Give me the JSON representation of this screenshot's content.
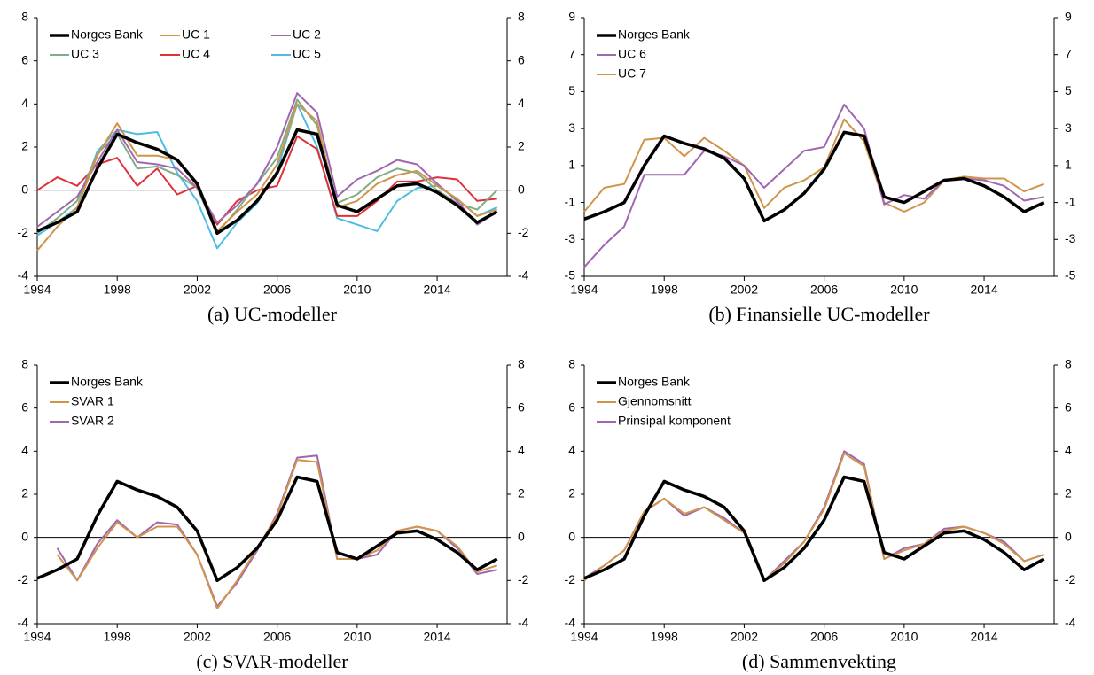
{
  "chart_data": [
    {
      "type": "line",
      "title": "(a) UC-modeller",
      "x": [
        1994,
        1995,
        1996,
        1997,
        1998,
        1999,
        2000,
        2001,
        2002,
        2003,
        2004,
        2005,
        2006,
        2007,
        2008,
        2009,
        2010,
        2011,
        2012,
        2013,
        2014,
        2015,
        2016,
        2017
      ],
      "series": [
        {
          "name": "Norges Bank",
          "color": "#000000",
          "values": [
            -1.9,
            -1.5,
            -1.0,
            1.0,
            2.6,
            2.2,
            1.9,
            1.4,
            0.3,
            -2.0,
            -1.4,
            -0.5,
            0.8,
            2.8,
            2.6,
            -0.7,
            -1.0,
            -0.4,
            0.2,
            0.3,
            -0.1,
            -0.7,
            -1.5,
            -1.0
          ]
        },
        {
          "name": "UC 1",
          "color": "#d0944a",
          "values": [
            -2.8,
            -1.7,
            -0.8,
            1.6,
            3.1,
            1.6,
            1.6,
            1.4,
            0.2,
            -1.9,
            -1.0,
            -0.2,
            1.2,
            4.0,
            3.2,
            -0.8,
            -0.5,
            0.3,
            0.7,
            0.9,
            0.2,
            -0.4,
            -1.2,
            -0.9
          ]
        },
        {
          "name": "UC 2",
          "color": "#a066b0",
          "values": [
            -1.7,
            -1.0,
            -0.3,
            1.3,
            2.8,
            1.3,
            1.2,
            1.0,
            0.1,
            -1.5,
            -0.7,
            0.3,
            2.0,
            4.5,
            3.6,
            -0.3,
            0.5,
            0.9,
            1.4,
            1.2,
            0.3,
            -0.5,
            -1.6,
            -1.0
          ]
        },
        {
          "name": "UC 3",
          "color": "#7fae84",
          "values": [
            -2.0,
            -1.3,
            -0.5,
            1.7,
            2.6,
            1.0,
            1.1,
            0.7,
            0.1,
            -2.0,
            -0.9,
            0.3,
            1.5,
            4.2,
            3.0,
            -0.6,
            -0.2,
            0.6,
            1.0,
            0.8,
            0.0,
            -0.6,
            -0.9,
            0.0
          ]
        },
        {
          "name": "UC 4",
          "color": "#e0303a",
          "values": [
            0.0,
            0.6,
            0.2,
            1.2,
            1.5,
            0.2,
            1.0,
            -0.2,
            0.2,
            -1.6,
            -0.5,
            0.0,
            0.2,
            2.5,
            1.9,
            -1.2,
            -1.2,
            -0.5,
            0.4,
            0.4,
            0.6,
            0.5,
            -0.5,
            -0.4
          ]
        },
        {
          "name": "UC 5",
          "color": "#4ebde0",
          "values": [
            -2.1,
            -1.5,
            -0.8,
            1.8,
            2.8,
            2.6,
            2.7,
            0.8,
            -0.5,
            -2.7,
            -1.5,
            -0.6,
            0.9,
            4.0,
            2.0,
            -1.3,
            -1.6,
            -1.9,
            -0.5,
            0.1,
            0.2,
            -0.4,
            -1.2,
            -0.8
          ]
        }
      ],
      "xlim": [
        1994,
        2017.5
      ],
      "xticks": [
        1994,
        1998,
        2002,
        2006,
        2010,
        2014
      ],
      "ylim": [
        -4,
        8
      ],
      "yticks": [
        -4,
        -2,
        0,
        2,
        4,
        6,
        8
      ],
      "y2lim": [
        -4,
        8
      ],
      "y2ticks": [
        -4,
        -2,
        0,
        2,
        4,
        6,
        8
      ]
    },
    {
      "type": "line",
      "title": "(b) Finansielle UC-modeller",
      "x": [
        1994,
        1995,
        1996,
        1997,
        1998,
        1999,
        2000,
        2001,
        2002,
        2003,
        2004,
        2005,
        2006,
        2007,
        2008,
        2009,
        2010,
        2011,
        2012,
        2013,
        2014,
        2015,
        2016,
        2017
      ],
      "series": [
        {
          "name": "Norges Bank",
          "color": "#000000",
          "values": [
            -1.9,
            -1.5,
            -1.0,
            1.0,
            2.6,
            2.2,
            1.9,
            1.4,
            0.3,
            -2.0,
            -1.4,
            -0.5,
            0.8,
            2.8,
            2.6,
            -0.7,
            -1.0,
            -0.4,
            0.2,
            0.3,
            -0.1,
            -0.7,
            -1.5,
            -1.0
          ]
        },
        {
          "name": "UC 6",
          "color": "#a066b0",
          "values": [
            -4.5,
            -3.3,
            -2.3,
            0.5,
            0.5,
            0.5,
            1.8,
            1.5,
            1.0,
            -0.2,
            0.8,
            1.8,
            2.0,
            4.3,
            3.0,
            -1.1,
            -0.6,
            -0.8,
            0.2,
            0.3,
            0.2,
            -0.1,
            -0.9,
            -0.7
          ]
        },
        {
          "name": "UC 7",
          "color": "#d0944a",
          "values": [
            -1.5,
            -0.2,
            0.0,
            2.4,
            2.5,
            1.5,
            2.5,
            1.8,
            1.0,
            -1.3,
            -0.2,
            0.2,
            0.9,
            3.5,
            2.3,
            -1.0,
            -1.5,
            -1.0,
            0.2,
            0.4,
            0.3,
            0.3,
            -0.4,
            0.0
          ]
        }
      ],
      "xlim": [
        1994,
        2017.5
      ],
      "xticks": [
        1994,
        1998,
        2002,
        2006,
        2010,
        2014
      ],
      "ylim": [
        -5,
        9
      ],
      "yticks": [
        -5,
        -3,
        -1,
        1,
        3,
        5,
        7,
        9
      ],
      "y2lim": [
        -5,
        9
      ],
      "y2ticks": [
        -5,
        -3,
        -1,
        1,
        3,
        5,
        7,
        9
      ]
    },
    {
      "type": "line",
      "title": "(c) SVAR-modeller",
      "x": [
        1994,
        1995,
        1996,
        1997,
        1998,
        1999,
        2000,
        2001,
        2002,
        2003,
        2004,
        2005,
        2006,
        2007,
        2008,
        2009,
        2010,
        2011,
        2012,
        2013,
        2014,
        2015,
        2016,
        2017
      ],
      "series": [
        {
          "name": "Norges Bank",
          "color": "#000000",
          "values": [
            -1.9,
            -1.5,
            -1.0,
            1.0,
            2.6,
            2.2,
            1.9,
            1.4,
            0.3,
            -2.0,
            -1.4,
            -0.5,
            0.8,
            2.8,
            2.6,
            -0.7,
            -1.0,
            -0.4,
            0.2,
            0.3,
            -0.1,
            -0.7,
            -1.5,
            -1.0
          ]
        },
        {
          "name": "SVAR 1",
          "color": "#d0944a",
          "values": [
            null,
            -0.8,
            -2.0,
            -0.5,
            0.7,
            0.0,
            0.5,
            0.5,
            -0.8,
            -3.3,
            -2.0,
            -0.5,
            1.0,
            3.6,
            3.5,
            -1.0,
            -1.0,
            -0.6,
            0.3,
            0.5,
            0.3,
            -0.4,
            -1.6,
            -1.3
          ]
        },
        {
          "name": "SVAR 2",
          "color": "#a066b0",
          "values": [
            null,
            -0.5,
            -2.0,
            -0.3,
            0.8,
            0.0,
            0.7,
            0.6,
            -0.8,
            -3.2,
            -2.1,
            -0.6,
            1.1,
            3.7,
            3.8,
            -1.0,
            -1.0,
            -0.8,
            0.3,
            0.5,
            0.3,
            -0.5,
            -1.7,
            -1.5
          ]
        }
      ],
      "xlim": [
        1994,
        2017.5
      ],
      "xticks": [
        1994,
        1998,
        2002,
        2006,
        2010,
        2014
      ],
      "ylim": [
        -4,
        8
      ],
      "yticks": [
        -4,
        -2,
        0,
        2,
        4,
        6,
        8
      ],
      "y2lim": [
        -4,
        8
      ],
      "y2ticks": [
        -4,
        -2,
        0,
        2,
        4,
        6,
        8
      ]
    },
    {
      "type": "line",
      "title": "(d) Sammenvekting",
      "x": [
        1994,
        1995,
        1996,
        1997,
        1998,
        1999,
        2000,
        2001,
        2002,
        2003,
        2004,
        2005,
        2006,
        2007,
        2008,
        2009,
        2010,
        2011,
        2012,
        2013,
        2014,
        2015,
        2016,
        2017
      ],
      "series": [
        {
          "name": "Norges Bank",
          "color": "#000000",
          "values": [
            -1.9,
            -1.5,
            -1.0,
            1.0,
            2.6,
            2.2,
            1.9,
            1.4,
            0.3,
            -2.0,
            -1.4,
            -0.5,
            0.8,
            2.8,
            2.6,
            -0.7,
            -1.0,
            -0.4,
            0.2,
            0.3,
            -0.1,
            -0.7,
            -1.5,
            -1.0
          ]
        },
        {
          "name": "Gjennomsnitt",
          "color": "#d0944a",
          "values": [
            -2.0,
            -1.3,
            -0.6,
            1.2,
            1.8,
            1.1,
            1.4,
            0.8,
            0.2,
            -2.0,
            -1.2,
            -0.2,
            1.3,
            3.9,
            3.3,
            -1.0,
            -0.6,
            -0.3,
            0.3,
            0.5,
            0.2,
            -0.3,
            -1.1,
            -0.8
          ]
        },
        {
          "name": "Prinsipal komponent",
          "color": "#a066b0",
          "values": [
            -1.9,
            -1.3,
            -0.6,
            1.2,
            1.8,
            1.0,
            1.4,
            0.9,
            0.2,
            -2.0,
            -1.1,
            -0.2,
            1.4,
            4.0,
            3.4,
            -1.0,
            -0.5,
            -0.3,
            0.4,
            0.5,
            0.2,
            -0.2,
            -1.1,
            -0.8
          ]
        }
      ],
      "xlim": [
        1994,
        2017.5
      ],
      "xticks": [
        1994,
        1998,
        2002,
        2006,
        2010,
        2014
      ],
      "ylim": [
        -4,
        8
      ],
      "yticks": [
        -4,
        -2,
        0,
        2,
        4,
        6,
        8
      ],
      "y2lim": [
        -4,
        8
      ],
      "y2ticks": [
        -4,
        -2,
        0,
        2,
        4,
        6,
        8
      ]
    }
  ]
}
